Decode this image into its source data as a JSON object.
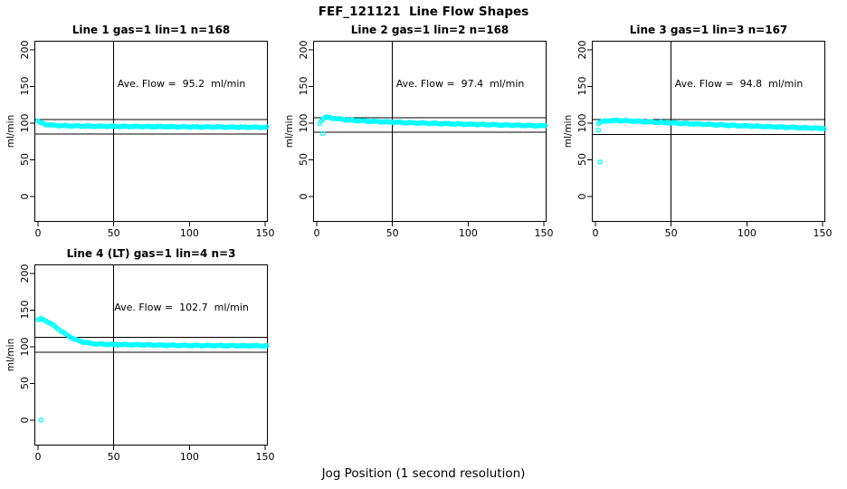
{
  "title": "FEF_121121  Line Flow Shapes",
  "xlabel": "Jog Position (1 second resolution)",
  "ylabel": "ml/min",
  "colors": {
    "points": "#00ffff",
    "axis": "#000000",
    "background": "#ffffff"
  },
  "axes": {
    "x_ticks": [
      0,
      50,
      100,
      150
    ],
    "y_ticks": [
      0,
      50,
      100,
      150,
      200
    ],
    "xlim": [
      -2.4,
      151.8
    ],
    "ylim": [
      -34.6,
      212.3
    ],
    "grid": false
  },
  "chart_data": [
    {
      "type": "scatter",
      "title": "Line 1 gas=1 lin=1 n=168",
      "annotation": "Ave. Flow =  95.2  ml/min",
      "ave_flow": 95.2,
      "n": 168,
      "marker": "open-circle",
      "ref_upper": 105.2,
      "ref_lower": 85.2,
      "ref_vertical_x": 50,
      "points_control": [
        [
          0,
          103
        ],
        [
          1,
          101
        ],
        [
          3,
          99.5
        ],
        [
          6,
          98
        ],
        [
          10,
          97
        ],
        [
          20,
          96.3
        ],
        [
          40,
          95.8
        ],
        [
          70,
          95.3
        ],
        [
          110,
          94.8
        ],
        [
          151,
          94.3
        ]
      ],
      "outliers": []
    },
    {
      "type": "scatter",
      "title": "Line 2 gas=1 lin=2 n=168",
      "annotation": "Ave. Flow =  97.4  ml/min",
      "ave_flow": 97.4,
      "n": 168,
      "marker": "open-circle",
      "ref_upper": 107.4,
      "ref_lower": 87.4,
      "ref_vertical_x": 50,
      "points_control": [
        [
          2,
          100
        ],
        [
          4,
          106
        ],
        [
          6,
          108
        ],
        [
          9,
          107.3
        ],
        [
          14,
          105.8
        ],
        [
          22,
          104
        ],
        [
          35,
          102.5
        ],
        [
          60,
          100.6
        ],
        [
          90,
          99
        ],
        [
          120,
          97.6
        ],
        [
          151,
          96.3
        ]
      ],
      "outliers": [
        [
          4,
          86
        ]
      ]
    },
    {
      "type": "scatter",
      "title": "Line 3 gas=1 lin=3 n=167",
      "annotation": "Ave. Flow =  94.8  ml/min",
      "ave_flow": 94.8,
      "n": 167,
      "marker": "open-circle",
      "ref_upper": 104.8,
      "ref_lower": 84.8,
      "ref_vertical_x": 50,
      "points_control": [
        [
          2,
          99.5
        ],
        [
          4,
          102
        ],
        [
          8,
          103.3
        ],
        [
          15,
          103.6
        ],
        [
          25,
          102.8
        ],
        [
          40,
          101.3
        ],
        [
          60,
          99.4
        ],
        [
          90,
          96.9
        ],
        [
          120,
          94.8
        ],
        [
          151,
          92.8
        ]
      ],
      "outliers": [
        [
          2,
          90.5
        ],
        [
          3,
          47
        ]
      ]
    },
    {
      "type": "scatter",
      "title": "Line 4 (LT) gas=1 lin=4 n=3",
      "annotation": "Ave. Flow =  102.7  ml/min",
      "ave_flow": 102.7,
      "n": 3,
      "marker": "open-circle",
      "ref_upper": 112.7,
      "ref_lower": 92.7,
      "ref_vertical_x": 50,
      "points_control": [
        [
          0,
          137
        ],
        [
          2,
          138
        ],
        [
          4,
          136.5
        ],
        [
          7,
          133.5
        ],
        [
          10,
          129.5
        ],
        [
          14,
          123.5
        ],
        [
          18,
          117.5
        ],
        [
          22,
          112.5
        ],
        [
          26,
          108.8
        ],
        [
          30,
          106.4
        ],
        [
          35,
          104.7
        ],
        [
          40,
          103.8
        ],
        [
          50,
          103.2
        ],
        [
          70,
          102.7
        ],
        [
          95,
          101.9
        ],
        [
          120,
          101.6
        ],
        [
          151,
          101.3
        ]
      ],
      "outliers": [
        [
          2,
          0
        ]
      ]
    }
  ]
}
